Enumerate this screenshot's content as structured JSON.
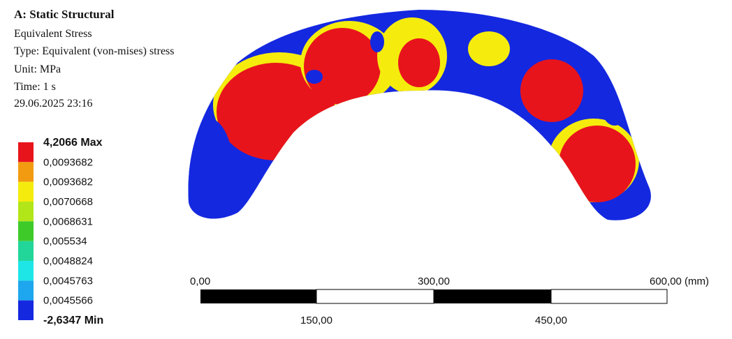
{
  "header": {
    "title": "A: Static Structural",
    "lines": [
      "Equivalent Stress",
      "Type: Equivalent (von-mises) stress",
      "Unit: MPa",
      "Time: 1 s",
      "29.06.2025 23:16"
    ]
  },
  "legend": {
    "labels": [
      "4,2066 Max",
      "0,0093682",
      "0,0093682",
      "0,0070668",
      "0,0068631",
      "0,005534",
      "0,0048824",
      "0,0045763",
      "0,0045566",
      "-2,6347 Min"
    ],
    "colors": [
      "#e8141c",
      "#f29b11",
      "#f5ec0e",
      "#b3e619",
      "#3ecb2a",
      "#22d69a",
      "#1fe6e6",
      "#1ea7ee",
      "#1428e0"
    ]
  },
  "scale_bar": {
    "top_labels": [
      "0,00",
      "300,00",
      "600,00 (mm)"
    ],
    "bottom_labels": [
      "150,00",
      "450,00"
    ]
  }
}
